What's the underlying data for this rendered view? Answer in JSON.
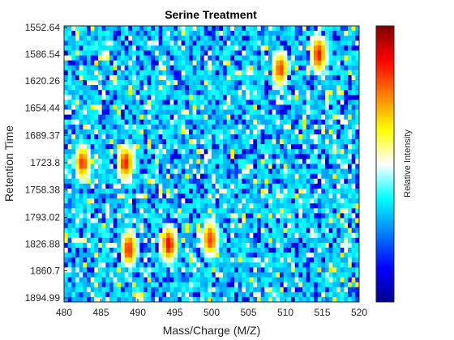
{
  "chart_data": {
    "type": "heatmap",
    "title": "Serine Treatment",
    "xlabel": "Mass/Charge (M/Z)",
    "ylabel": "Retention Time",
    "xlim": [
      480,
      520
    ],
    "x_ticks": [
      480,
      485,
      490,
      495,
      500,
      505,
      510,
      515,
      520
    ],
    "y_ticks": [
      1552.64,
      1586.54,
      1620.26,
      1654.44,
      1689.37,
      1723.8,
      1758.38,
      1793.02,
      1826.88,
      1860.7,
      1894.99
    ],
    "y_tick_labels": [
      "1552.64",
      "1586.54",
      "1620.26",
      "1654.44",
      "1689.37",
      "1723.8",
      "1758.38",
      "1793.02",
      "1826.88",
      "1860.7",
      "1894.99"
    ],
    "y_direction": "top-to-bottom",
    "colormap": "jet",
    "colorbar": {
      "label": "Relative Intensity",
      "position": "right"
    },
    "grid": false,
    "hotspots": [
      {
        "mz": 482.5,
        "rt": 1723.8,
        "intensity": 0.85
      },
      {
        "mz": 488.3,
        "rt": 1723.8,
        "intensity": 0.9
      },
      {
        "mz": 488.8,
        "rt": 1833.0,
        "intensity": 0.9
      },
      {
        "mz": 494.2,
        "rt": 1826.88,
        "intensity": 0.98
      },
      {
        "mz": 499.8,
        "rt": 1820.0,
        "intensity": 0.88
      },
      {
        "mz": 509.3,
        "rt": 1605.0,
        "intensity": 0.85
      },
      {
        "mz": 514.5,
        "rt": 1586.54,
        "intensity": 0.96
      }
    ]
  }
}
